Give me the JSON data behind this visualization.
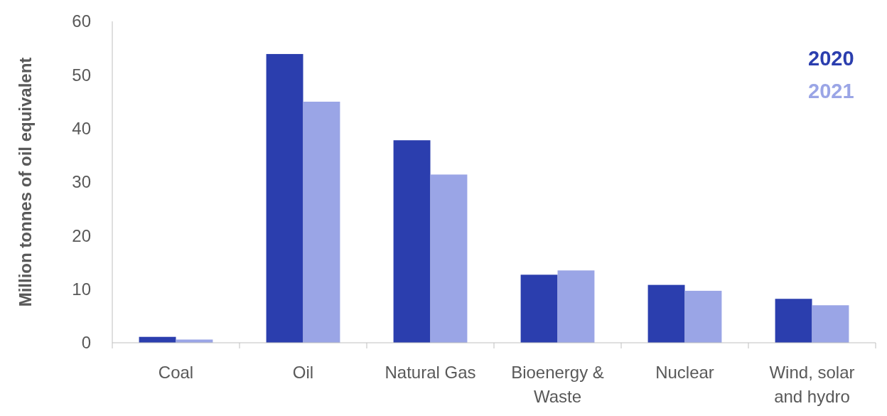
{
  "chart_data": {
    "type": "bar",
    "ylabel": "Million tonnes of oil equivalent",
    "categories": [
      "Coal",
      "Oil",
      "Natural Gas",
      "Bioenergy & Waste",
      "Nuclear",
      "Wind, solar and hydro"
    ],
    "series": [
      {
        "name": "2020",
        "color": "#2b3eae",
        "values": [
          1.1,
          53.9,
          37.8,
          12.7,
          10.8,
          8.2
        ]
      },
      {
        "name": "2021",
        "color": "#9aa5e6",
        "values": [
          0.6,
          45.0,
          31.4,
          13.5,
          9.7,
          7.0
        ]
      }
    ],
    "ylim": [
      0,
      60
    ],
    "yticks": [
      0,
      10,
      20,
      30,
      40,
      50,
      60
    ],
    "grid": false,
    "legend": "top right"
  }
}
